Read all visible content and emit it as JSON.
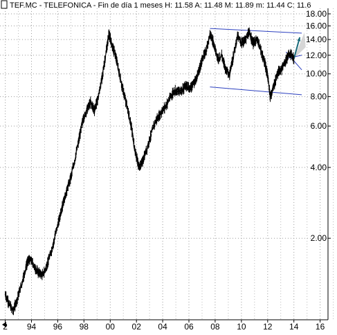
{
  "chart_data": {
    "type": "line",
    "title": "TEF.MC - TELEFONICA - Fin de día 1 meses",
    "quote": {
      "high_label": "H:",
      "high": "11.58",
      "ask_label": "A:",
      "ask": "11.48",
      "mid_label": "M:",
      "mid": "11.89",
      "low_label": "m:",
      "low": "11.44",
      "close_label": "C:",
      "close": "11.6"
    },
    "y_scale": "log",
    "ylim": [
      0.9,
      19.0
    ],
    "xlim": [
      1991.6,
      2016.6
    ],
    "y_ticks": [
      18,
      16,
      14,
      12,
      10,
      8,
      6,
      4,
      2
    ],
    "y_tick_labels": [
      "18.00",
      "16.00",
      "14.00",
      "12.00",
      "10.00",
      "8.00",
      "6.00",
      "4.00",
      "2.00"
    ],
    "x_ticks": [
      1992,
      1994,
      1996,
      1998,
      2000,
      2002,
      2004,
      2006,
      2008,
      2010,
      2012,
      2014,
      2016
    ],
    "x_tick_labels": [
      "2",
      "94",
      "96",
      "98",
      "00",
      "02",
      "04",
      "06",
      "08",
      "10",
      "12",
      "14",
      "16"
    ],
    "grid": true,
    "series": [
      {
        "color": "#000000",
        "points": [
          [
            1992.0,
            1.15
          ],
          [
            1992.3,
            1.05
          ],
          [
            1992.6,
            0.98
          ],
          [
            1992.9,
            1.1
          ],
          [
            1993.2,
            1.25
          ],
          [
            1993.5,
            1.45
          ],
          [
            1993.75,
            1.62
          ],
          [
            1994.0,
            1.6
          ],
          [
            1994.3,
            1.48
          ],
          [
            1994.6,
            1.42
          ],
          [
            1994.9,
            1.4
          ],
          [
            1995.2,
            1.55
          ],
          [
            1995.5,
            1.75
          ],
          [
            1995.8,
            2.05
          ],
          [
            1996.1,
            2.4
          ],
          [
            1996.4,
            2.8
          ],
          [
            1996.7,
            3.2
          ],
          [
            1997.0,
            3.65
          ],
          [
            1997.3,
            4.3
          ],
          [
            1997.6,
            5.2
          ],
          [
            1997.9,
            6.3
          ],
          [
            1998.2,
            7.0
          ],
          [
            1998.5,
            7.6
          ],
          [
            1998.8,
            7.0
          ],
          [
            1999.1,
            8.0
          ],
          [
            1999.4,
            9.8
          ],
          [
            1999.7,
            12.5
          ],
          [
            1999.9,
            14.8
          ],
          [
            2000.1,
            13.5
          ],
          [
            2000.4,
            12.0
          ],
          [
            2000.7,
            10.0
          ],
          [
            2001.0,
            8.4
          ],
          [
            2001.3,
            7.2
          ],
          [
            2001.6,
            6.0
          ],
          [
            2001.9,
            4.7
          ],
          [
            2002.2,
            4.0
          ],
          [
            2002.5,
            4.3
          ],
          [
            2002.8,
            4.8
          ],
          [
            2003.1,
            5.5
          ],
          [
            2003.4,
            6.2
          ],
          [
            2003.7,
            6.6
          ],
          [
            2004.0,
            7.0
          ],
          [
            2004.3,
            7.4
          ],
          [
            2004.6,
            8.0
          ],
          [
            2004.9,
            8.5
          ],
          [
            2005.2,
            8.4
          ],
          [
            2005.5,
            8.6
          ],
          [
            2005.8,
            8.9
          ],
          [
            2006.1,
            8.7
          ],
          [
            2006.4,
            9.2
          ],
          [
            2006.7,
            10.0
          ],
          [
            2007.0,
            11.5
          ],
          [
            2007.3,
            12.5
          ],
          [
            2007.6,
            14.8
          ],
          [
            2007.9,
            13.5
          ],
          [
            2008.2,
            11.5
          ],
          [
            2008.5,
            12.0
          ],
          [
            2008.8,
            10.5
          ],
          [
            2009.1,
            10.0
          ],
          [
            2009.4,
            12.0
          ],
          [
            2009.7,
            14.5
          ],
          [
            2010.0,
            13.5
          ],
          [
            2010.3,
            14.0
          ],
          [
            2010.6,
            15.0
          ],
          [
            2010.9,
            13.5
          ],
          [
            2011.2,
            14.0
          ],
          [
            2011.5,
            12.5
          ],
          [
            2011.8,
            11.0
          ],
          [
            2012.0,
            9.8
          ],
          [
            2012.2,
            8.0
          ],
          [
            2012.5,
            9.0
          ],
          [
            2012.8,
            10.2
          ],
          [
            2013.1,
            10.5
          ],
          [
            2013.4,
            11.5
          ],
          [
            2013.7,
            12.2
          ],
          [
            2014.0,
            11.6
          ]
        ]
      }
    ],
    "annotations": [
      {
        "type": "trendline",
        "color": "#2b3fbf",
        "points": [
          [
            2007.6,
            15.6
          ],
          [
            2014.6,
            14.9
          ]
        ]
      },
      {
        "type": "trendline",
        "color": "#2b3fbf",
        "points": [
          [
            2007.6,
            8.8
          ],
          [
            2014.6,
            8.15
          ]
        ]
      },
      {
        "type": "trendline",
        "color": "#2b3fbf",
        "points": [
          [
            2013.4,
            12.4
          ],
          [
            2014.6,
            10.4
          ]
        ]
      },
      {
        "type": "trendline",
        "color": "#2b3fbf",
        "points": [
          [
            2013.4,
            11.6
          ],
          [
            2014.6,
            12.0
          ]
        ]
      },
      {
        "type": "arrow",
        "color": "#1a6b7a",
        "points": [
          [
            2014.0,
            11.6
          ],
          [
            2014.45,
            14.3
          ]
        ]
      }
    ],
    "projection_color": "#cfcfcf"
  }
}
